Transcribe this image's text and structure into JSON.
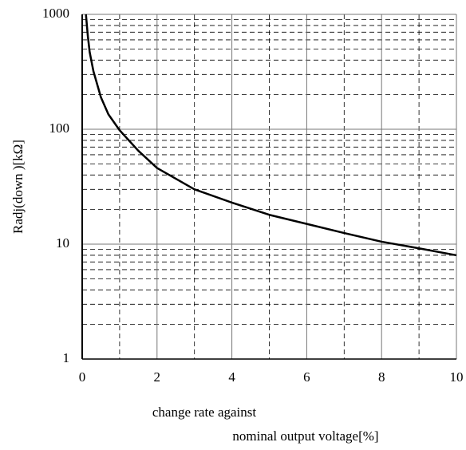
{
  "chart_data": {
    "type": "line",
    "log_y": true,
    "grid": true,
    "minor_grid": true,
    "ylabel": "Radj(down )[kΩ]",
    "xlabel": [
      "change rate against",
      "nominal output voltage[%]"
    ],
    "xlim": [
      0,
      10
    ],
    "xticks": [
      0,
      2,
      4,
      6,
      8,
      10
    ],
    "ylim": [
      1,
      1000
    ],
    "yticks": [
      1,
      10,
      100,
      1000
    ],
    "series": [
      {
        "color": "#000000",
        "x": [
          0.1,
          0.15,
          0.2,
          0.3,
          0.5,
          0.7,
          1,
          1.5,
          2,
          3,
          4,
          5,
          6,
          7,
          8,
          9,
          10
        ],
        "values": [
          1000,
          650,
          470,
          320,
          190,
          135,
          98,
          65,
          46,
          30,
          23,
          18,
          15,
          12.5,
          10.5,
          9.2,
          8
        ]
      }
    ]
  }
}
